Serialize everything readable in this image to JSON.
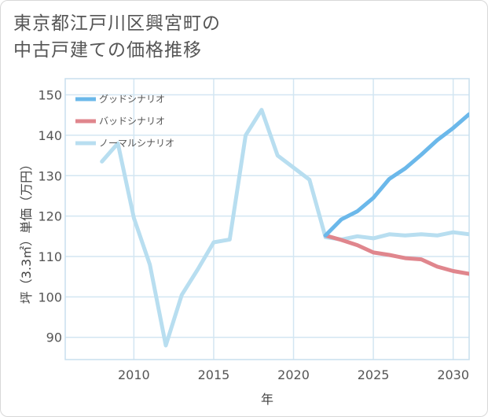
{
  "chart_data": {
    "type": "line",
    "title_line1": "東京都江戸川区興宮町の",
    "title_line2": "中古戸建ての価格推移",
    "xlabel": "年",
    "ylabel": "坪（3.3㎡）単価（万円）",
    "xlim": [
      2005.7,
      2031
    ],
    "ylim": [
      84.5,
      154
    ],
    "x_ticks": [
      2010,
      2015,
      2020,
      2025,
      2030
    ],
    "y_ticks": [
      90,
      100,
      110,
      120,
      130,
      140,
      150
    ],
    "grid": true,
    "legend_position": "top-left",
    "series": [
      {
        "name": "グッドシナリオ",
        "color": "#6bb8ea",
        "x": [
          2022,
          2023,
          2024,
          2025,
          2026,
          2027,
          2028,
          2029,
          2030,
          2031
        ],
        "values": [
          115.2,
          119.2,
          121.2,
          124.5,
          129.2,
          131.8,
          135.2,
          138.8,
          141.8,
          145.2
        ]
      },
      {
        "name": "バッドシナリオ",
        "color": "#e0868d",
        "x": [
          2022,
          2023,
          2024,
          2025,
          2026,
          2027,
          2028,
          2029,
          2030,
          2031
        ],
        "values": [
          115.2,
          114.1,
          112.8,
          111.0,
          110.4,
          109.6,
          109.3,
          107.5,
          106.4,
          105.7
        ]
      },
      {
        "name": "ノーマルシナリオ",
        "color": "#b8def0",
        "x": [
          2008,
          2009,
          2010,
          2011,
          2012,
          2013,
          2014,
          2015,
          2016,
          2017,
          2018,
          2019,
          2020,
          2021,
          2022,
          2023,
          2024,
          2025,
          2026,
          2027,
          2028,
          2029,
          2030,
          2031
        ],
        "values": [
          133.5,
          138.0,
          119.5,
          108.0,
          88.0,
          100.5,
          106.8,
          113.5,
          114.2,
          140.0,
          146.3,
          135.0,
          132.0,
          129.0,
          114.8,
          114.2,
          115.0,
          114.5,
          115.5,
          115.2,
          115.5,
          115.2,
          116.0,
          115.5
        ]
      }
    ]
  }
}
